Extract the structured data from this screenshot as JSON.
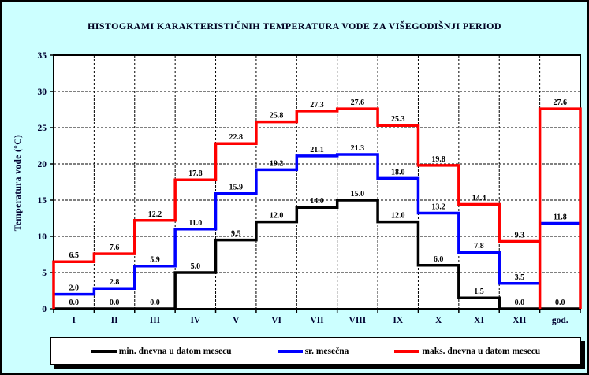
{
  "title": "HISTOGRAMI KARAKTERISTIČNIH TEMPERATURA VODE ZA VIŠEGODIŠNJI PERIOD",
  "y_axis": {
    "label": "Temperatura vode (°C)",
    "ticks": [
      0,
      5,
      10,
      15,
      20,
      25,
      30,
      35
    ]
  },
  "colors": {
    "background": "#CCFFFF",
    "plot_background": "#FFFFFF",
    "grid": "#000000",
    "axis_text": "#000030",
    "series_min": "#000000",
    "series_avg": "#0000FF",
    "series_max": "#FF0000"
  },
  "legend": {
    "items": [
      {
        "label": "min. dnevna u datom mesecu",
        "color": "#000000"
      },
      {
        "label": "sr. mesečna",
        "color": "#0000FF"
      },
      {
        "label": "maks. dnevna u datom mesecu",
        "color": "#FF0000"
      }
    ]
  },
  "chart_data": {
    "type": "line",
    "subtype": "step-histogram",
    "title": "HISTOGRAMI KARAKTERISTIČNIH TEMPERATURA VODE ZA VIŠEGODIŠNJI PERIOD",
    "xlabel": "",
    "ylabel": "Temperatura vode (°C)",
    "ylim": [
      0,
      35
    ],
    "grid": true,
    "legend_position": "bottom",
    "data_labels": true,
    "categories": [
      "I",
      "II",
      "III",
      "IV",
      "V",
      "VI",
      "VII",
      "VIII",
      "IX",
      "X",
      "XI",
      "XII",
      "god."
    ],
    "series": [
      {
        "name": "min. dnevna u datom mesecu",
        "color": "#000000",
        "god_style": "step",
        "values": [
          0.0,
          0.0,
          0.0,
          5.0,
          9.5,
          12.0,
          14.0,
          15.0,
          12.0,
          6.0,
          1.5,
          0.0,
          0.0
        ]
      },
      {
        "name": "sr. mesečna",
        "color": "#0000FF",
        "god_style": "float",
        "values": [
          2.0,
          2.8,
          5.9,
          11.0,
          15.9,
          19.2,
          21.1,
          21.3,
          18.0,
          13.2,
          7.8,
          3.5,
          11.8
        ]
      },
      {
        "name": "maks. dnevna u datom mesecu",
        "color": "#FF0000",
        "god_style": "box",
        "leading_vertical": true,
        "values": [
          6.5,
          7.6,
          12.2,
          17.8,
          22.8,
          25.8,
          27.3,
          27.6,
          25.3,
          19.8,
          14.4,
          9.3,
          27.6
        ]
      }
    ]
  }
}
